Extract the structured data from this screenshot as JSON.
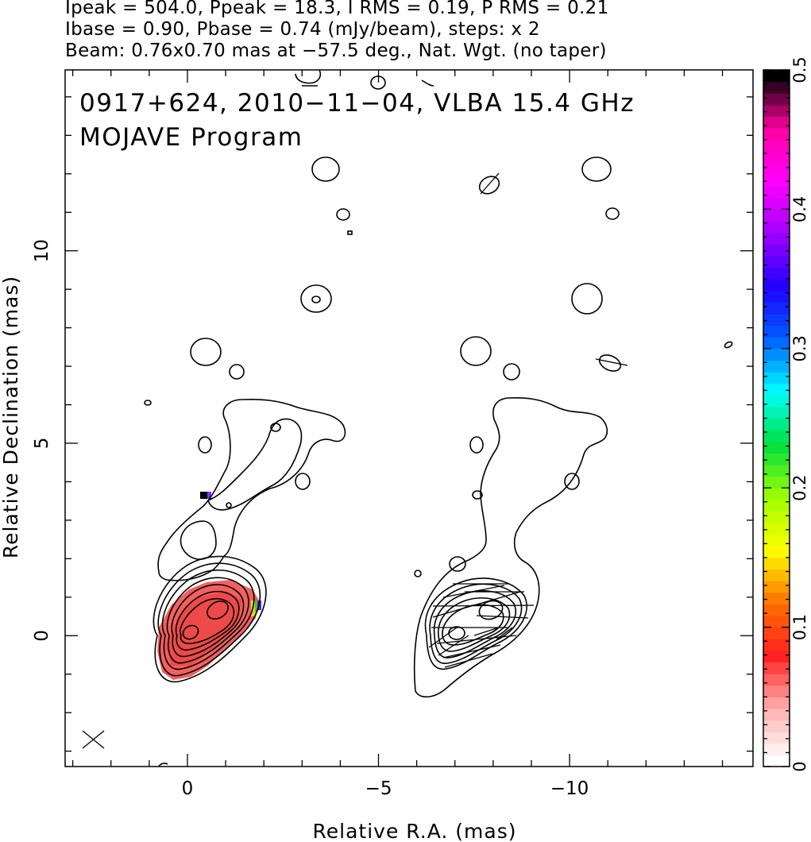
{
  "header": {
    "line1": "Ipeak = 504.0, Ppeak = 18.3, I RMS = 0.19, P RMS = 0.21",
    "line2": "Ibase = 0.90, Pbase = 0.74 (mJy/beam), steps: x 2",
    "line3": "Beam: 0.76x0.70 mas at −57.5 deg., Nat. Wgt. (no taper)"
  },
  "chart_data": {
    "type": "contour",
    "title": "0917+624, 2010−11−04, VLBA 15.4 GHz",
    "subtitle": "MOJAVE Program",
    "xlabel": "Relative R.A. (mas)",
    "ylabel": "Relative Declination (mas)",
    "xlim": [
      3.2,
      -14.8
    ],
    "ylim": [
      -3.4,
      14.7
    ],
    "x_ticks": [
      0,
      -5,
      -10
    ],
    "x_tick_labels": [
      "0",
      "−5",
      "−10"
    ],
    "y_ticks": [
      0,
      5,
      10
    ],
    "y_tick_labels": [
      "0",
      "5",
      "10"
    ],
    "colorbar": {
      "range": [
        0,
        0.5
      ],
      "ticks": [
        0,
        0.1,
        0.2,
        0.3,
        0.4,
        0.5
      ],
      "tick_labels": [
        "0",
        "0.1",
        "0.2",
        "0.3",
        "0.4",
        "0.5"
      ],
      "colors": [
        "#ffffff",
        "#ffb0b0",
        "#ff2020",
        "#ff7000",
        "#ffff00",
        "#a0ff00",
        "#00e040",
        "#00ffff",
        "#0060ff",
        "#2000ff",
        "#a000ff",
        "#ff00ff",
        "#ff00a0",
        "#000000"
      ]
    },
    "cores": [
      {
        "panel": "left",
        "x": 0.0,
        "y": 0.0
      },
      {
        "panel": "left",
        "x": -1.0,
        "y": 0.8
      },
      {
        "panel": "right",
        "x": -6.9,
        "y": 0.0
      },
      {
        "panel": "right",
        "x": -7.9,
        "y": 0.7
      }
    ],
    "contour_levels_mjy_per_beam": [
      0.9,
      1.8,
      3.6,
      7.2,
      14.4,
      28.8,
      57.6,
      115.2,
      230.4,
      460.8
    ],
    "beam": {
      "major_mas": 0.76,
      "minor_mas": 0.7,
      "pa_deg": -57.5
    }
  }
}
